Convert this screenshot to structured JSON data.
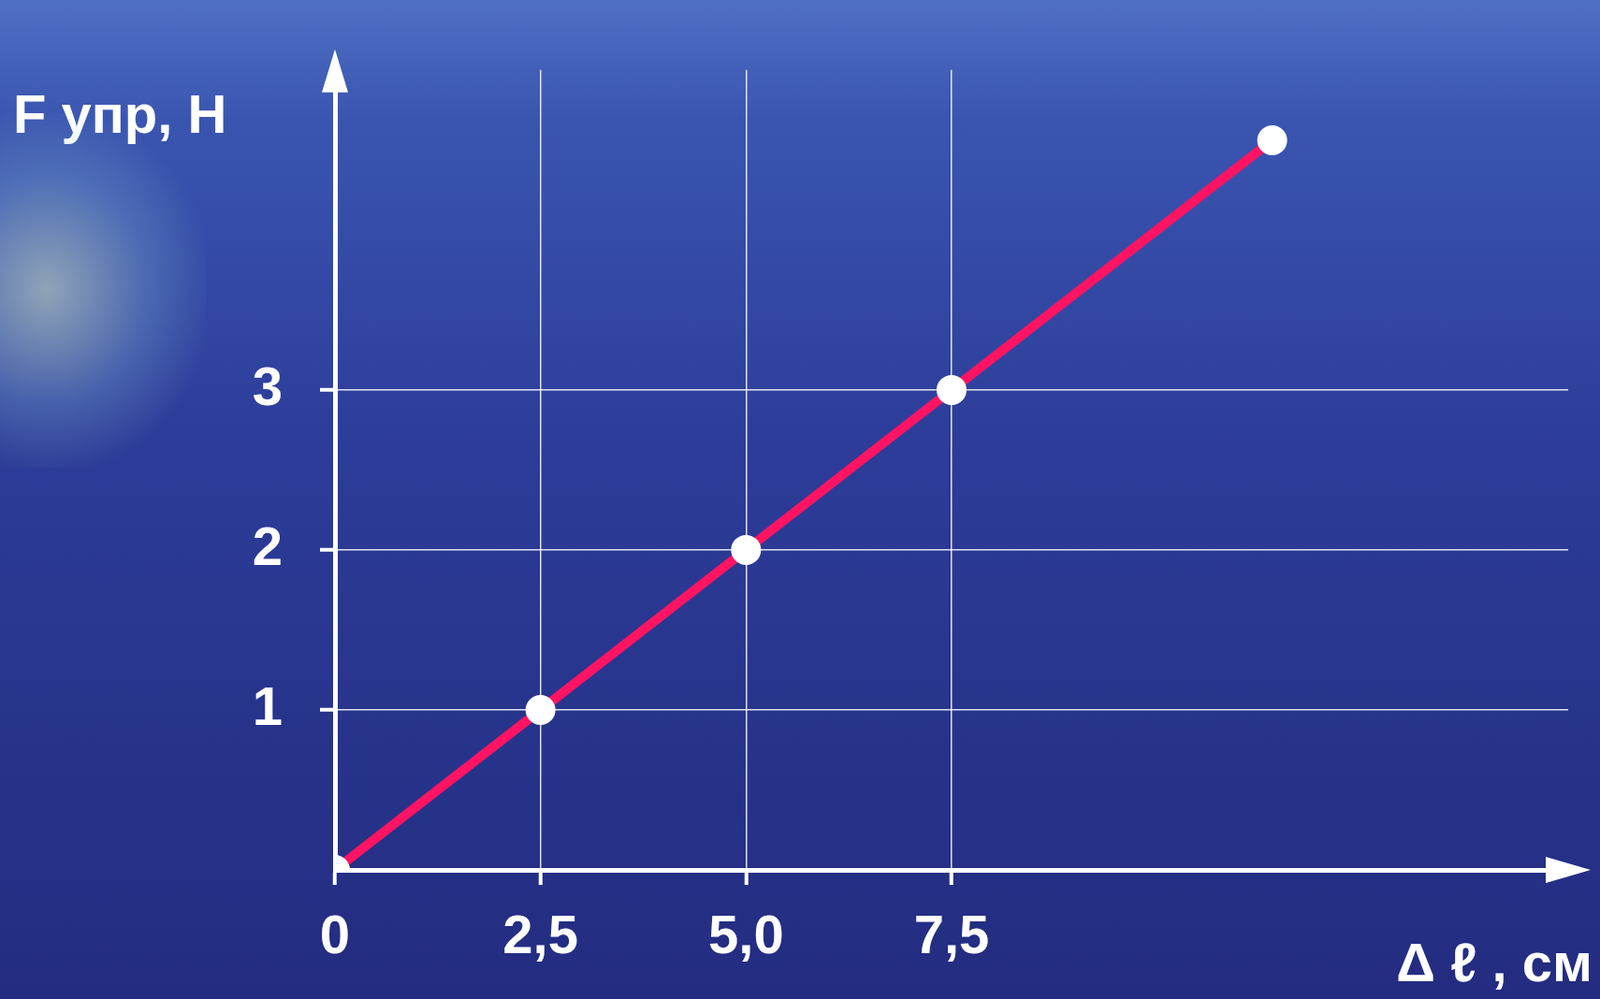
{
  "chart_data": {
    "type": "line",
    "x_label": "Δ ℓ , см",
    "y_label": "F упр, Н",
    "x": [
      0,
      2.5,
      5,
      7.5,
      11.4
    ],
    "values": [
      0,
      1,
      2,
      3,
      4.56
    ],
    "color": "#ff1463",
    "marker": "circle",
    "xlim": [
      0,
      15
    ],
    "ylim": [
      0,
      5
    ],
    "xticks": [
      0,
      {
        "value": 2.5,
        "label": "2,5"
      },
      {
        "value": 5,
        "label": "5,0"
      },
      {
        "value": 7.5,
        "label": "7,5"
      }
    ],
    "yticks": [
      1,
      2,
      3
    ],
    "grid": true
  }
}
